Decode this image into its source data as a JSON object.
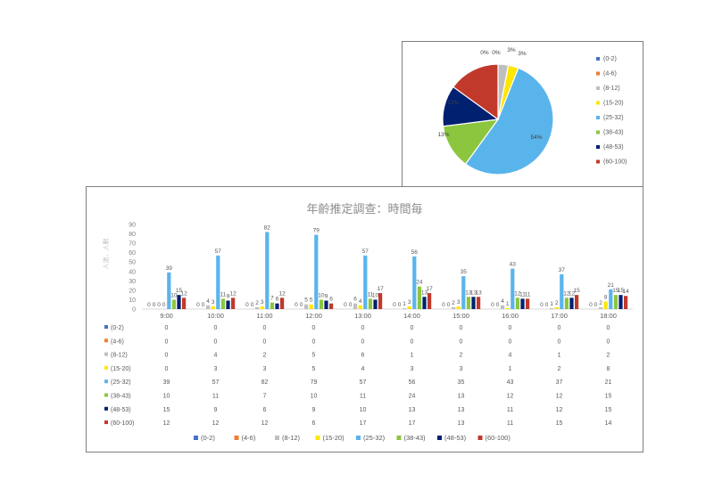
{
  "colors": [
    "#4472c4",
    "#ed7d31",
    "#bfbfbf",
    "#ffe600",
    "#5ab4ec",
    "#8cc63f",
    "#002070",
    "#c0392b"
  ],
  "chart_data": [
    {
      "type": "pie",
      "categories": [
        "(0-2)",
        "(4-6)",
        "(8-12)",
        "(15-20)",
        "(25-32)",
        "(38-43)",
        "(48-53)",
        "(60-100)"
      ],
      "values": [
        0,
        0,
        3,
        3,
        54,
        13,
        12,
        15
      ],
      "value_labels": [
        "0%",
        "0%",
        "3%",
        "3%",
        "54%",
        "13%",
        "12%",
        ""
      ],
      "legend_position": "right"
    },
    {
      "type": "bar",
      "title": "年齡推定調查：時間毎",
      "ylabel": "人流．人數",
      "categories": [
        "9:00",
        "10:00",
        "11:00",
        "12:00",
        "13:00",
        "14:00",
        "15:00",
        "16:00",
        "17:00",
        "18:00"
      ],
      "ylim": [
        0,
        90
      ],
      "yticks": [
        0,
        10,
        20,
        30,
        40,
        50,
        60,
        70,
        80,
        90
      ],
      "grid": false,
      "legend_position": "bottom",
      "series": [
        {
          "name": "(0-2)",
          "values": [
            0,
            0,
            0,
            0,
            0,
            0,
            0,
            0,
            0,
            0
          ]
        },
        {
          "name": "(4-6)",
          "values": [
            0,
            0,
            0,
            0,
            0,
            0,
            0,
            0,
            0,
            0
          ]
        },
        {
          "name": "(8-12)",
          "values": [
            0,
            4,
            2,
            5,
            6,
            1,
            2,
            4,
            1,
            2
          ]
        },
        {
          "name": "(15-20)",
          "values": [
            0,
            3,
            3,
            5,
            4,
            3,
            3,
            1,
            2,
            8
          ]
        },
        {
          "name": "(25-32)",
          "values": [
            39,
            57,
            82,
            79,
            57,
            56,
            35,
            43,
            37,
            21
          ]
        },
        {
          "name": "(38-43)",
          "values": [
            10,
            11,
            7,
            10,
            11,
            24,
            13,
            12,
            12,
            15
          ]
        },
        {
          "name": "(48-53)",
          "values": [
            15,
            9,
            6,
            9,
            10,
            13,
            13,
            11,
            12,
            15
          ]
        },
        {
          "name": "(60-100)",
          "values": [
            12,
            12,
            12,
            6,
            17,
            17,
            13,
            11,
            15,
            14
          ]
        }
      ]
    }
  ]
}
